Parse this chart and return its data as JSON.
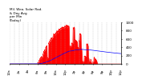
{
  "title": "Milwaukee Weather Solar Radiation & Day Average per Minute (Today)",
  "bg_color": "#ffffff",
  "plot_bg_color": "#ffffff",
  "bar_color": "#ff0000",
  "avg_line_color": "#0000ff",
  "grid_color": "#aaaaaa",
  "xlabel_color": "#000000",
  "ylabel_color": "#000000",
  "title_color": "#000000",
  "ylim": [
    0,
    1000
  ],
  "yticks": [
    0,
    200,
    400,
    600,
    800,
    1000
  ],
  "num_points": 1440
}
